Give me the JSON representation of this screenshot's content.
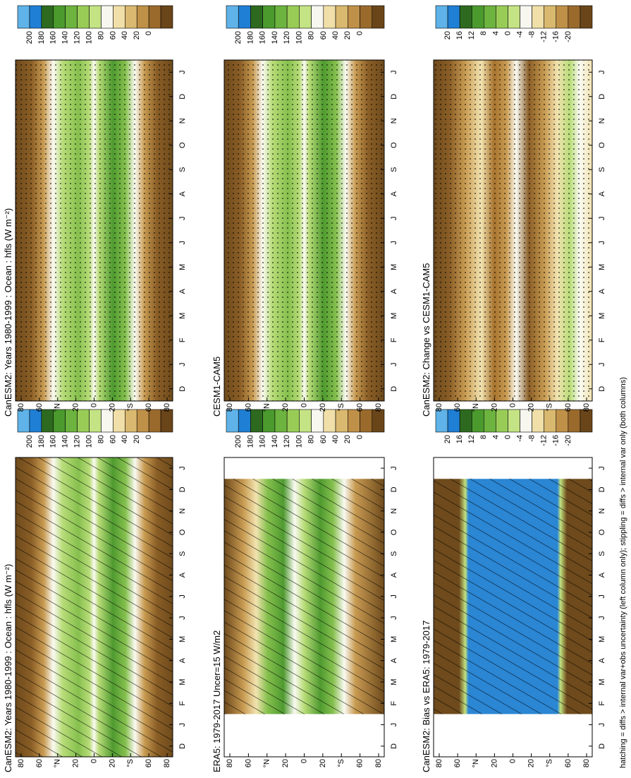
{
  "figure": {
    "months": [
      "D",
      "J",
      "F",
      "M",
      "A",
      "M",
      "J",
      "J",
      "A",
      "S",
      "O",
      "N",
      "D",
      "J"
    ],
    "lat_labels": [
      "80",
      "60",
      "°N",
      "20",
      "0",
      "20",
      "°S",
      "60",
      "80"
    ],
    "panels": [
      {
        "title": "CanESM2: Years 1980-1999 : Ocean : hfls (W m⁻²)",
        "colorbar_labels": [
          "200",
          "180",
          "160",
          "140",
          "120",
          "100",
          "80",
          "60",
          "40",
          "20",
          "0"
        ]
      },
      {
        "title": "ERA5: 1979-2017 Uncer=15 W/m2",
        "colorbar_labels": [
          "200",
          "180",
          "160",
          "140",
          "120",
          "100",
          "80",
          "60",
          "40",
          "20",
          "0"
        ]
      },
      {
        "title": "CanESM2: Bias vs ERA5: 1979-2017",
        "colorbar_labels": [
          "20",
          "16",
          "12",
          "8",
          "4",
          "0",
          "-4",
          "-8",
          "-12",
          "-16",
          "-20"
        ]
      },
      {
        "title": "CanESM2: Years 1980-1999 : Ocean : hfls (W m⁻²)",
        "colorbar_labels": [
          "200",
          "180",
          "160",
          "140",
          "120",
          "100",
          "80",
          "60",
          "40",
          "20",
          "0"
        ]
      },
      {
        "title": "CESM1-CAM5",
        "colorbar_labels": [
          "200",
          "180",
          "160",
          "140",
          "120",
          "100",
          "80",
          "60",
          "40",
          "20",
          "0"
        ]
      },
      {
        "title": "CanESM2: Change vs CESM1-CAM5",
        "colorbar_labels": [
          "20",
          "16",
          "12",
          "8",
          "4",
          "0",
          "-4",
          "-8",
          "-12",
          "-16",
          "-20"
        ]
      }
    ],
    "caption": "hatching = diffs > internal var+obs uncertainty (left column only); stippling = diffs > internal var only (both columns)"
  }
}
